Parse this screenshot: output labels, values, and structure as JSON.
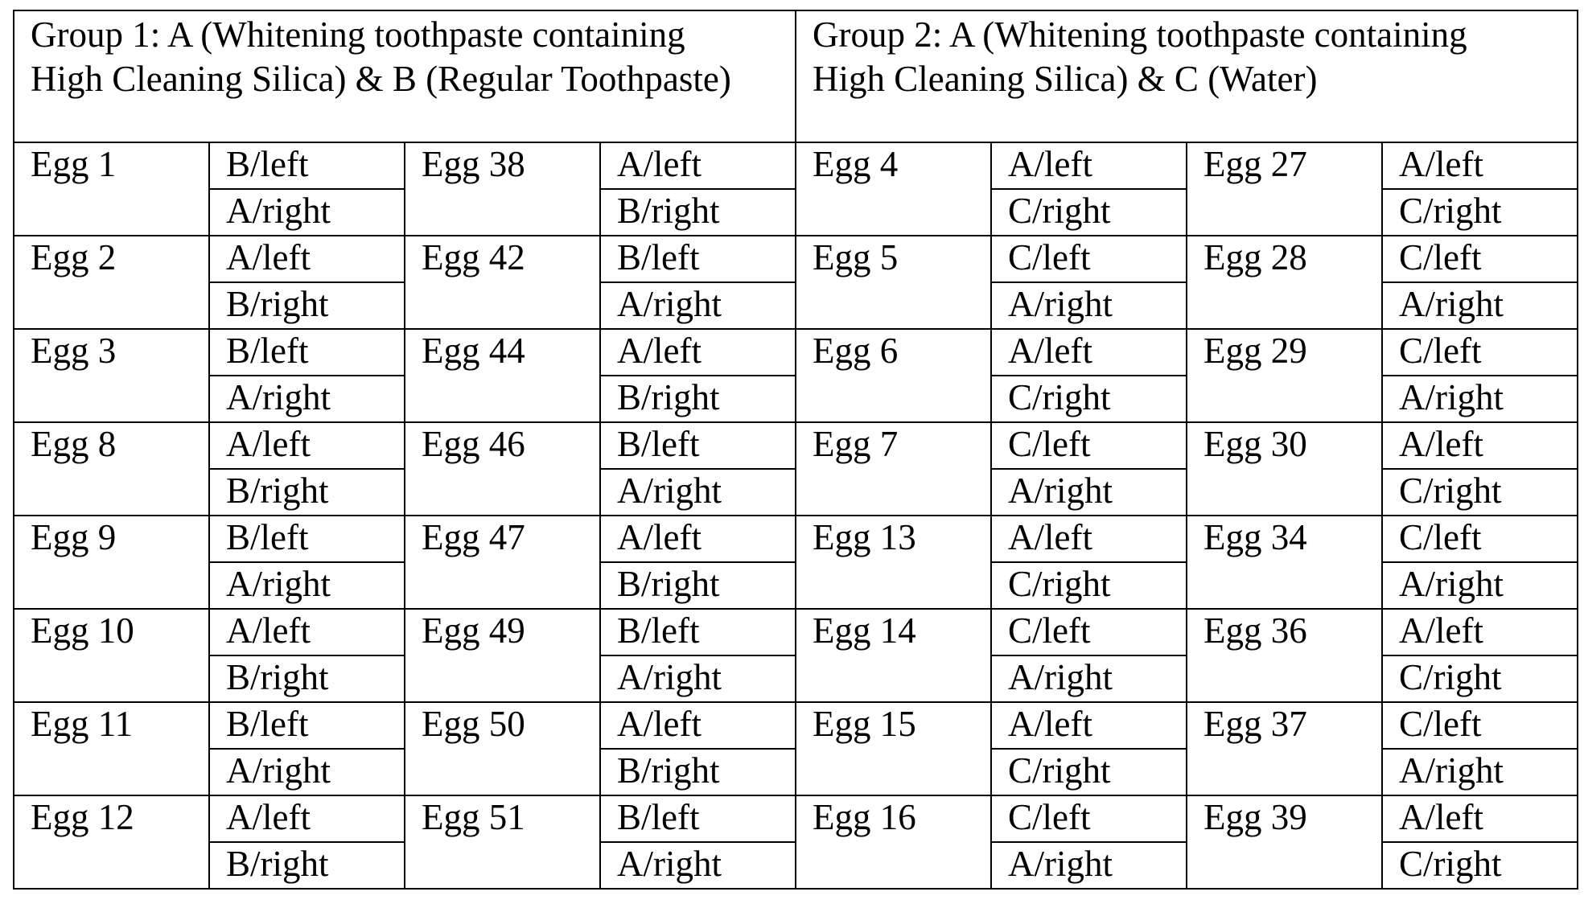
{
  "groups": [
    {
      "title": "Group 1: A (Whitening toothpaste containing High Cleaning Silica) & B (Regular Toothpaste)"
    },
    {
      "title": "Group 2: A (Whitening toothpaste containing High Cleaning Silica) & C (Water)"
    }
  ],
  "rows": [
    {
      "cells": [
        {
          "egg": "Egg 1",
          "first": "B/left",
          "second": "A/right"
        },
        {
          "egg": "Egg 38",
          "first": "A/left",
          "second": "B/right"
        },
        {
          "egg": "Egg 4",
          "first": "A/left",
          "second": "C/right"
        },
        {
          "egg": "Egg 27",
          "first": "A/left",
          "second": "C/right"
        }
      ]
    },
    {
      "cells": [
        {
          "egg": "Egg 2",
          "first": "A/left",
          "second": "B/right"
        },
        {
          "egg": "Egg 42",
          "first": "B/left",
          "second": "A/right"
        },
        {
          "egg": "Egg 5",
          "first": "C/left",
          "second": "A/right"
        },
        {
          "egg": "Egg 28",
          "first": "C/left",
          "second": "A/right"
        }
      ]
    },
    {
      "cells": [
        {
          "egg": "Egg 3",
          "first": "B/left",
          "second": "A/right"
        },
        {
          "egg": "Egg 44",
          "first": "A/left",
          "second": "B/right"
        },
        {
          "egg": "Egg 6",
          "first": "A/left",
          "second": "C/right"
        },
        {
          "egg": "Egg 29",
          "first": "C/left",
          "second": "A/right"
        }
      ]
    },
    {
      "cells": [
        {
          "egg": "Egg 8",
          "first": "A/left",
          "second": "B/right"
        },
        {
          "egg": "Egg 46",
          "first": "B/left",
          "second": "A/right"
        },
        {
          "egg": "Egg 7",
          "first": "C/left",
          "second": "A/right"
        },
        {
          "egg": "Egg 30",
          "first": "A/left",
          "second": "C/right"
        }
      ]
    },
    {
      "cells": [
        {
          "egg": "Egg 9",
          "first": "B/left",
          "second": "A/right"
        },
        {
          "egg": "Egg 47",
          "first": "A/left",
          "second": "B/right"
        },
        {
          "egg": "Egg 13",
          "first": "A/left",
          "second": "C/right"
        },
        {
          "egg": "Egg 34",
          "first": "C/left",
          "second": "A/right"
        }
      ]
    },
    {
      "cells": [
        {
          "egg": "Egg 10",
          "first": "A/left",
          "second": "B/right"
        },
        {
          "egg": "Egg 49",
          "first": "B/left",
          "second": "A/right"
        },
        {
          "egg": "Egg 14",
          "first": "C/left",
          "second": "A/right"
        },
        {
          "egg": "Egg 36",
          "first": "A/left",
          "second": "C/right"
        }
      ]
    },
    {
      "cells": [
        {
          "egg": "Egg 11",
          "first": "B/left",
          "second": "A/right"
        },
        {
          "egg": "Egg 50",
          "first": "A/left",
          "second": "B/right"
        },
        {
          "egg": "Egg 15",
          "first": "A/left",
          "second": "C/right"
        },
        {
          "egg": "Egg 37",
          "first": "C/left",
          "second": "A/right"
        }
      ]
    },
    {
      "cells": [
        {
          "egg": "Egg 12",
          "first": "A/left",
          "second": "B/right"
        },
        {
          "egg": "Egg 51",
          "first": "B/left",
          "second": "A/right"
        },
        {
          "egg": "Egg 16",
          "first": "C/left",
          "second": "A/right"
        },
        {
          "egg": "Egg 39",
          "first": "A/left",
          "second": "C/right"
        }
      ]
    }
  ]
}
